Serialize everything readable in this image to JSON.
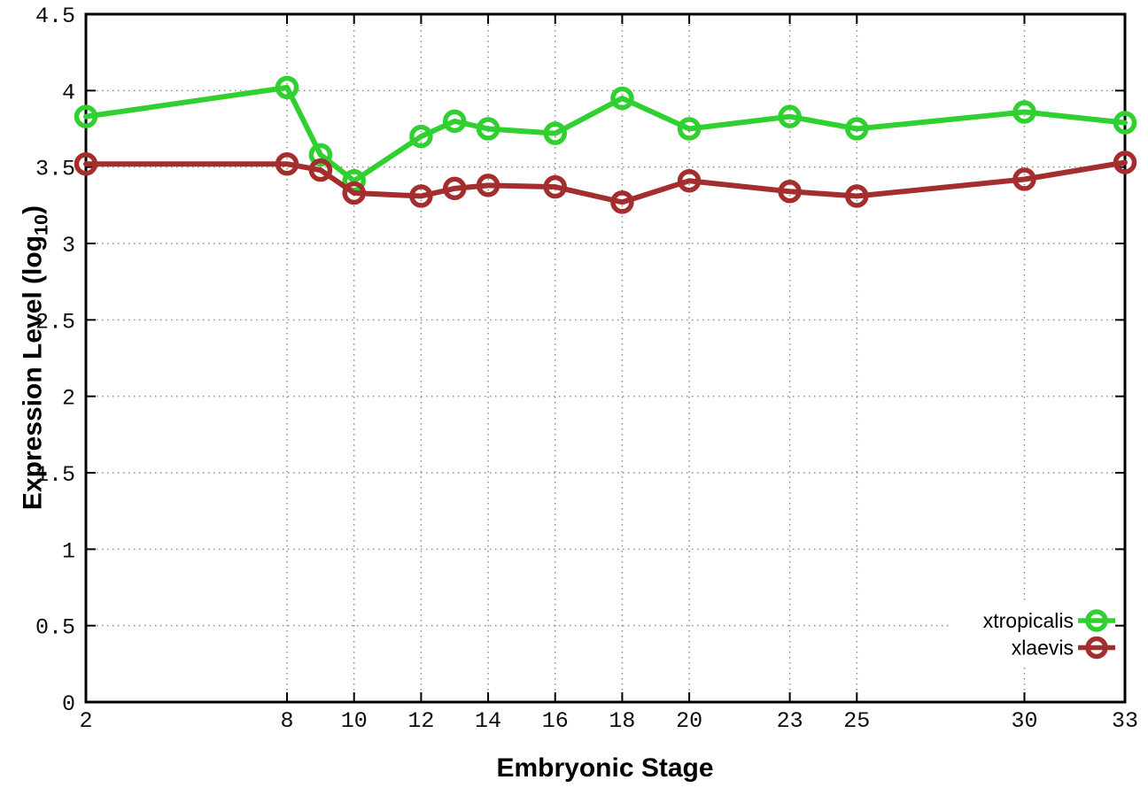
{
  "chart_data": {
    "type": "line",
    "title": "",
    "xlabel": "Embryonic Stage",
    "ylabel": {
      "text": "Expression Level (log10)",
      "prefix": "Expression Level (log",
      "sub": "10",
      "suffix": ")"
    },
    "x": [
      2,
      8,
      9,
      10,
      12,
      13,
      14,
      16,
      18,
      20,
      23,
      25,
      30,
      33
    ],
    "series": [
      {
        "name": "xtropicalis",
        "color": "#2fd02f",
        "marker": "open-circle",
        "values": [
          3.83,
          4.02,
          3.58,
          3.41,
          3.7,
          3.8,
          3.75,
          3.72,
          3.95,
          3.75,
          3.83,
          3.75,
          3.86,
          3.79
        ]
      },
      {
        "name": "xlaevis",
        "color": "#a42e2e",
        "marker": "open-circle",
        "values": [
          3.52,
          3.52,
          3.48,
          3.33,
          3.31,
          3.36,
          3.38,
          3.37,
          3.27,
          3.41,
          3.34,
          3.31,
          3.42,
          3.53
        ]
      }
    ],
    "xlim": [
      2,
      33
    ],
    "ylim": [
      0,
      4.5
    ],
    "xticks": {
      "values": [
        2,
        8,
        10,
        12,
        14,
        16,
        18,
        20,
        23,
        25,
        30,
        33
      ],
      "labels": [
        "2",
        "8",
        "10",
        "12",
        "14",
        "16",
        "18",
        "20",
        "23",
        "25",
        "30",
        "33"
      ]
    },
    "yticks": {
      "values": [
        0,
        0.5,
        1,
        1.5,
        2,
        2.5,
        3,
        3.5,
        4,
        4.5
      ],
      "labels": [
        "0",
        "0.5",
        "1",
        "1.5",
        "2",
        "2.5",
        "3",
        "3.5",
        "4",
        "4.5"
      ]
    },
    "grid": true,
    "legend_position": "bottom-right"
  },
  "colors": {
    "background": "#ffffff",
    "axis": "#000000",
    "grid": "#8c8c8c",
    "tick_label": "#0d0d0d"
  }
}
